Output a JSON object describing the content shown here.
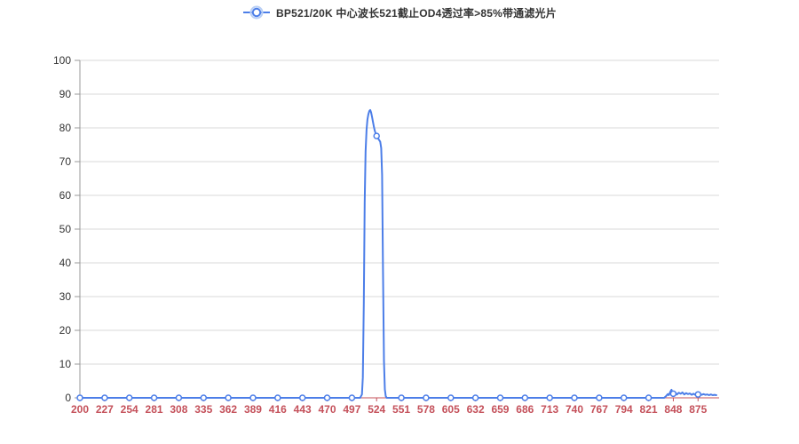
{
  "page": {
    "background": "#ffffff"
  },
  "legend": {
    "position": "top-center",
    "marker": "line-with-circle"
  },
  "chart_data": {
    "type": "line",
    "title": "",
    "xlabel": "",
    "ylabel": "",
    "xlim": [
      200,
      898
    ],
    "ylim": [
      0,
      100
    ],
    "grid": true,
    "legend_position": "top-center",
    "x_ticks": [
      200,
      227,
      254,
      281,
      308,
      335,
      362,
      389,
      416,
      443,
      470,
      497,
      524,
      551,
      578,
      605,
      632,
      659,
      686,
      713,
      740,
      767,
      794,
      821,
      848,
      875
    ],
    "y_ticks": [
      0,
      10,
      20,
      30,
      40,
      50,
      60,
      70,
      80,
      90,
      100
    ],
    "colors": {
      "series_line": "#4C7EE8",
      "marker_fill": "#ffffff",
      "legend_halo": "#b9cff5",
      "x_axis": "#C4505A",
      "x_labels": "#C4505A",
      "y_axis": "#999999",
      "y_labels": "#333333",
      "gridline": "#d9d9d9",
      "title_text": "#333333"
    },
    "series": [
      {
        "name": "BP521/20K 中心波长521截止OD4透过率>85%带通滤光片",
        "color": "#4C7EE8",
        "points": [
          [
            200,
            0
          ],
          [
            227,
            0
          ],
          [
            254,
            0
          ],
          [
            281,
            0
          ],
          [
            308,
            0
          ],
          [
            335,
            0
          ],
          [
            362,
            0
          ],
          [
            389,
            0
          ],
          [
            416,
            0
          ],
          [
            443,
            0
          ],
          [
            470,
            0
          ],
          [
            497,
            0
          ],
          [
            506,
            0
          ],
          [
            508,
            1
          ],
          [
            509,
            6
          ],
          [
            510,
            28
          ],
          [
            511,
            58
          ],
          [
            512,
            73
          ],
          [
            513,
            79.5
          ],
          [
            514,
            82.5
          ],
          [
            515,
            84
          ],
          [
            516,
            85
          ],
          [
            517,
            85.3
          ],
          [
            518,
            84.6
          ],
          [
            519,
            83.2
          ],
          [
            520,
            81.8
          ],
          [
            521,
            80.4
          ],
          [
            522,
            79.2
          ],
          [
            523,
            78.3
          ],
          [
            524,
            77.6
          ],
          [
            525,
            77.1
          ],
          [
            526,
            76.7
          ],
          [
            527,
            76.3
          ],
          [
            528,
            75.9
          ],
          [
            529,
            74
          ],
          [
            530,
            66
          ],
          [
            531,
            38
          ],
          [
            532,
            11
          ],
          [
            533,
            2.5
          ],
          [
            534,
            0.5
          ],
          [
            535,
            0
          ],
          [
            551,
            0
          ],
          [
            578,
            0
          ],
          [
            605,
            0
          ],
          [
            632,
            0
          ],
          [
            659,
            0
          ],
          [
            686,
            0
          ],
          [
            713,
            0
          ],
          [
            740,
            0
          ],
          [
            767,
            0
          ],
          [
            794,
            0
          ],
          [
            821,
            0
          ],
          [
            838,
            0
          ],
          [
            840,
            0.5
          ],
          [
            842,
            1.1
          ],
          [
            843,
            0.8
          ],
          [
            845,
            1.9
          ],
          [
            846,
            2.4
          ],
          [
            847,
            1.5
          ],
          [
            848,
            1.2
          ],
          [
            850,
            1.6
          ],
          [
            852,
            1.0
          ],
          [
            854,
            1.5
          ],
          [
            856,
            1.2
          ],
          [
            858,
            1.6
          ],
          [
            860,
            1.0
          ],
          [
            862,
            1.4
          ],
          [
            864,
            1.1
          ],
          [
            866,
            1.3
          ],
          [
            868,
            0.9
          ],
          [
            870,
            1.2
          ],
          [
            872,
            0.9
          ],
          [
            874,
            1.1
          ],
          [
            875,
            1.0
          ],
          [
            877,
            1.2
          ],
          [
            879,
            0.9
          ],
          [
            881,
            1.1
          ],
          [
            883,
            0.9
          ],
          [
            885,
            1.0
          ],
          [
            887,
            0.8
          ],
          [
            889,
            1.0
          ],
          [
            891,
            0.8
          ],
          [
            893,
            0.9
          ],
          [
            895,
            0.8
          ]
        ]
      }
    ],
    "annotations": []
  }
}
